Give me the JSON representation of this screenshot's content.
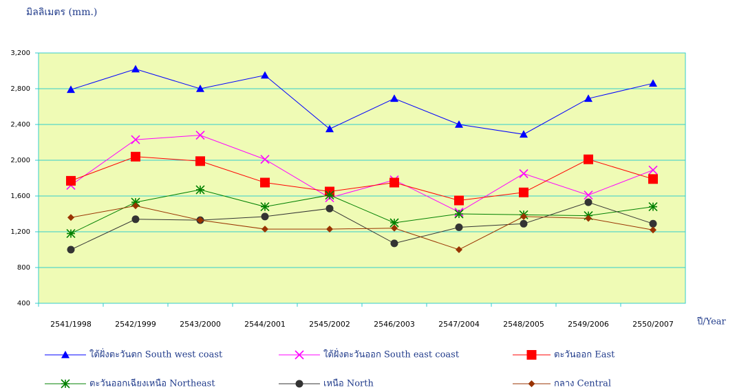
{
  "chart_data": {
    "type": "line",
    "y_axis_label": "มิลลิเมตร  (mm.)",
    "x_axis_label": "ปี/Year",
    "categories": [
      "2541/1998",
      "2542/1999",
      "2543/2000",
      "2544/2001",
      "2545/2002",
      "2546/2003",
      "2547/2004",
      "2548/2005",
      "2549/2006",
      "2550/2007"
    ],
    "ylim": [
      400,
      3200
    ],
    "yticks": [
      {
        "value": 400,
        "label": "400"
      },
      {
        "value": 800,
        "label": "800"
      },
      {
        "value": 1200,
        "label": "1,200"
      },
      {
        "value": 1600,
        "label": "1,600"
      },
      {
        "value": 2000,
        "label": "2,000"
      },
      {
        "value": 2400,
        "label": "2,400"
      },
      {
        "value": 2800,
        "label": "2,800"
      },
      {
        "value": 3200,
        "label": "3,200"
      }
    ],
    "grid": true,
    "series": [
      {
        "name": "ใต้ฝั่งตะวันตก  South west coast",
        "color": "#0000ff",
        "marker": "triangle",
        "values": [
          2790,
          3020,
          2800,
          2950,
          2350,
          2690,
          2400,
          2290,
          2690,
          2860
        ]
      },
      {
        "name": "ใต้ฝั่งตะวันออก  South east coast",
        "color": "#ff00ff",
        "marker": "x",
        "values": [
          1720,
          2230,
          2280,
          2010,
          1580,
          1780,
          1420,
          1850,
          1610,
          1890
        ]
      },
      {
        "name": "ตะวันออก  East",
        "color": "#ff0000",
        "marker": "square",
        "values": [
          1770,
          2040,
          1990,
          1750,
          1650,
          1750,
          1550,
          1640,
          2010,
          1790
        ]
      },
      {
        "name": "ตะวันออกเฉียงเหนือ  Northeast",
        "color": "#008000",
        "marker": "asterisk",
        "values": [
          1180,
          1530,
          1670,
          1480,
          1610,
          1300,
          1400,
          1390,
          1380,
          1480
        ]
      },
      {
        "name": "เหนือ  North",
        "color": "#333333",
        "marker": "circle",
        "values": [
          1000,
          1340,
          1330,
          1370,
          1460,
          1070,
          1250,
          1290,
          1530,
          1290
        ]
      },
      {
        "name": "กลาง  Central",
        "color": "#993300",
        "marker": "diamond",
        "values": [
          1360,
          1490,
          1330,
          1230,
          1230,
          1240,
          1000,
          1370,
          1350,
          1220
        ]
      }
    ]
  }
}
